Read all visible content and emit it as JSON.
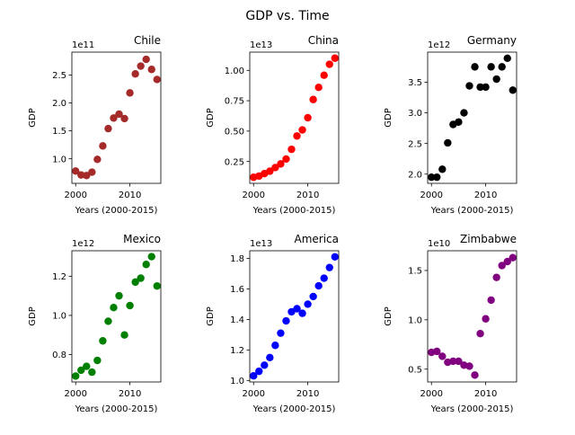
{
  "figure": {
    "title": "GDP vs. Time"
  },
  "chart_data": [
    {
      "type": "scatter",
      "title": "Chile",
      "xlabel": "Years (2000-2015)",
      "ylabel": "GDP",
      "offset_text": "1e11",
      "scale": 100000000000.0,
      "color": "#a52a2a",
      "xlim": [
        1999.3,
        2015.7
      ],
      "ylim": [
        0.56,
        2.91
      ],
      "xticks": [
        2000,
        2010
      ],
      "yticks": [
        1.0,
        1.5,
        2.0,
        2.5
      ],
      "yticklabels": [
        "1.0",
        "1.5",
        "2.0",
        "2.5"
      ],
      "x": [
        2000,
        2001,
        2002,
        2003,
        2004,
        2005,
        2006,
        2007,
        2008,
        2009,
        2010,
        2011,
        2012,
        2013,
        2014,
        2015
      ],
      "y": [
        0.78,
        0.71,
        0.7,
        0.76,
        0.99,
        1.23,
        1.54,
        1.73,
        1.8,
        1.72,
        2.18,
        2.52,
        2.66,
        2.78,
        2.6,
        2.42
      ]
    },
    {
      "type": "scatter",
      "title": "China",
      "xlabel": "Years (2000-2015)",
      "ylabel": "GDP",
      "offset_text": "1e13",
      "scale": 10000000000000.0,
      "color": "#ff0000",
      "xlim": [
        1999.3,
        2015.7
      ],
      "ylim": [
        0.07,
        1.15
      ],
      "xticks": [
        2000,
        2010
      ],
      "yticks": [
        0.25,
        0.5,
        0.75,
        1.0
      ],
      "yticklabels": [
        "0.25",
        "0.50",
        "0.75",
        "1.00"
      ],
      "x": [
        2000,
        2001,
        2002,
        2003,
        2004,
        2005,
        2006,
        2007,
        2008,
        2009,
        2010,
        2011,
        2012,
        2013,
        2014,
        2015
      ],
      "y": [
        0.12,
        0.13,
        0.15,
        0.17,
        0.2,
        0.23,
        0.27,
        0.35,
        0.46,
        0.51,
        0.61,
        0.76,
        0.86,
        0.96,
        1.05,
        1.1
      ]
    },
    {
      "type": "scatter",
      "title": "Germany",
      "xlabel": "Years (2000-2015)",
      "ylabel": "GDP",
      "offset_text": "1e12",
      "scale": 1000000000000.0,
      "color": "#000000",
      "xlim": [
        1999.3,
        2015.7
      ],
      "ylim": [
        1.85,
        3.99
      ],
      "xticks": [
        2000,
        2010
      ],
      "yticks": [
        2.0,
        2.5,
        3.0,
        3.5
      ],
      "yticklabels": [
        "2.0",
        "2.5",
        "3.0",
        "3.5"
      ],
      "x": [
        2000,
        2001,
        2002,
        2003,
        2004,
        2005,
        2006,
        2007,
        2008,
        2009,
        2010,
        2011,
        2012,
        2013,
        2014,
        2015
      ],
      "y": [
        1.95,
        1.95,
        2.08,
        2.51,
        2.81,
        2.85,
        3.0,
        3.44,
        3.75,
        3.42,
        3.42,
        3.75,
        3.55,
        3.75,
        3.89,
        3.37
      ]
    },
    {
      "type": "scatter",
      "title": "Mexico",
      "xlabel": "Years (2000-2015)",
      "ylabel": "GDP",
      "offset_text": "1e12",
      "scale": 1000000000000.0,
      "color": "#008000",
      "xlim": [
        1999.3,
        2015.7
      ],
      "ylim": [
        0.66,
        1.33
      ],
      "xticks": [
        2000,
        2010
      ],
      "yticks": [
        0.8,
        1.0,
        1.2
      ],
      "yticklabels": [
        "0.8",
        "1.0",
        "1.2"
      ],
      "x": [
        2000,
        2001,
        2002,
        2003,
        2004,
        2005,
        2006,
        2007,
        2008,
        2009,
        2010,
        2011,
        2012,
        2013,
        2014,
        2015
      ],
      "y": [
        0.69,
        0.72,
        0.74,
        0.71,
        0.77,
        0.87,
        0.97,
        1.04,
        1.1,
        0.9,
        1.05,
        1.17,
        1.19,
        1.26,
        1.3,
        1.15
      ]
    },
    {
      "type": "scatter",
      "title": "America",
      "xlabel": "Years (2000-2015)",
      "ylabel": "GDP",
      "offset_text": "1e13",
      "scale": 10000000000000.0,
      "color": "#0000ff",
      "xlim": [
        1999.3,
        2015.7
      ],
      "ylim": [
        0.99,
        1.85
      ],
      "xticks": [
        2000,
        2010
      ],
      "yticks": [
        1.0,
        1.2,
        1.4,
        1.6,
        1.8
      ],
      "yticklabels": [
        "1.0",
        "1.2",
        "1.4",
        "1.6",
        "1.8"
      ],
      "x": [
        2000,
        2001,
        2002,
        2003,
        2004,
        2005,
        2006,
        2007,
        2008,
        2009,
        2010,
        2011,
        2012,
        2013,
        2014,
        2015
      ],
      "y": [
        1.03,
        1.06,
        1.1,
        1.15,
        1.23,
        1.31,
        1.39,
        1.45,
        1.47,
        1.44,
        1.5,
        1.55,
        1.62,
        1.67,
        1.74,
        1.81
      ]
    },
    {
      "type": "scatter",
      "title": "Zimbabwe",
      "xlabel": "Years (2000-2015)",
      "ylabel": "GDP",
      "offset_text": "1e10",
      "scale": 10000000000.0,
      "color": "#800080",
      "xlim": [
        1999.3,
        2015.7
      ],
      "ylim": [
        0.37,
        1.7
      ],
      "xticks": [
        2000,
        2010
      ],
      "yticks": [
        0.5,
        1.0,
        1.5
      ],
      "yticklabels": [
        "0.5",
        "1.0",
        "1.5"
      ],
      "x": [
        2000,
        2001,
        2002,
        2003,
        2004,
        2005,
        2006,
        2007,
        2008,
        2009,
        2010,
        2011,
        2012,
        2013,
        2014,
        2015
      ],
      "y": [
        0.67,
        0.68,
        0.63,
        0.57,
        0.58,
        0.58,
        0.54,
        0.53,
        0.44,
        0.86,
        1.01,
        1.2,
        1.43,
        1.55,
        1.59,
        1.63
      ]
    }
  ]
}
